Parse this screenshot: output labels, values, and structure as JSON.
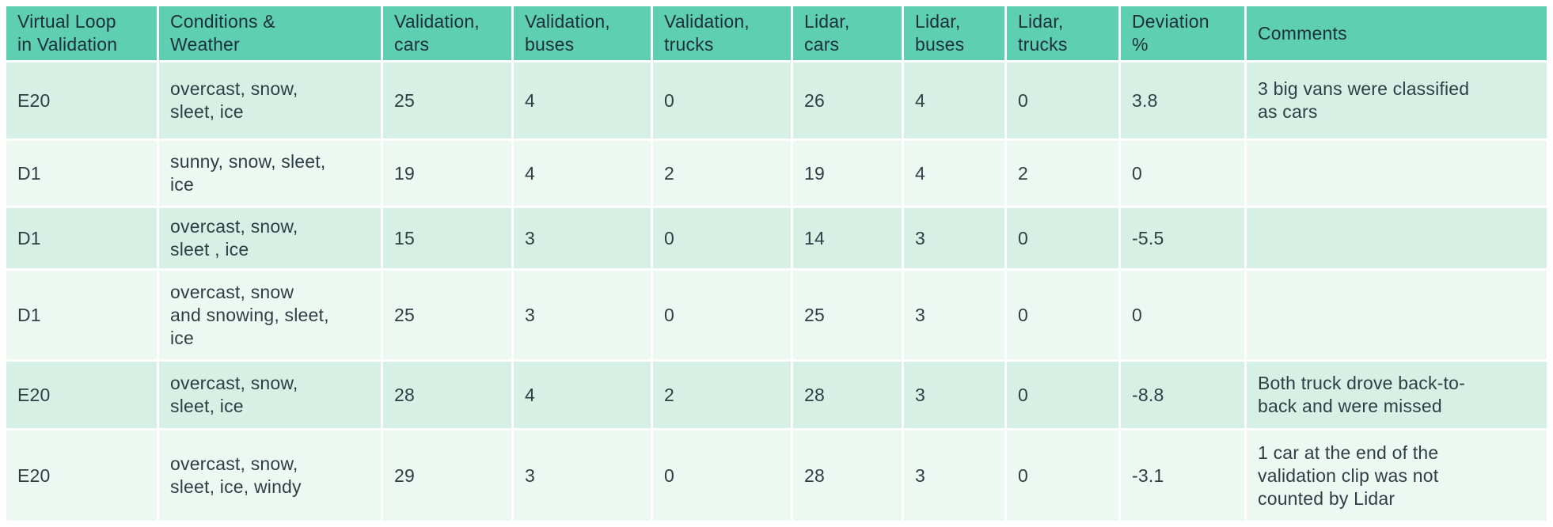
{
  "colors": {
    "header_bg": "#5fcfb2",
    "row_shaded_bg": "#d6f0e5",
    "row_light_bg": "#eef8f3",
    "gap": "#ffffff",
    "header_text": "#1e3038",
    "body_text": "#2e3e45"
  },
  "chart_data": {
    "type": "table",
    "columns": [
      "Virtual Loop\nin Validation",
      "Conditions &\nWeather",
      "Validation,\ncars",
      "Validation,\nbuses",
      "Validation,\ntrucks",
      "Lidar,\ncars",
      "Lidar,\nbuses",
      "Lidar,\ntrucks",
      "Deviation\n%",
      "Comments"
    ],
    "rows": [
      [
        "E20",
        "overcast, snow,\nsleet, ice",
        "25",
        "4",
        "0",
        "26",
        "4",
        "0",
        "3.8",
        "3 big vans were classified\nas cars"
      ],
      [
        "D1",
        "sunny, snow, sleet,\nice",
        "19",
        "4",
        "2",
        "19",
        "4",
        "2",
        "0",
        ""
      ],
      [
        "D1",
        "overcast, snow,\nsleet , ice",
        "15",
        "3",
        "0",
        "14",
        "3",
        "0",
        "-5.5",
        ""
      ],
      [
        "D1",
        "overcast, snow\nand snowing, sleet,\nice",
        "25",
        "3",
        "0",
        "25",
        "3",
        "0",
        "0",
        ""
      ],
      [
        "E20",
        "overcast, snow,\nsleet, ice",
        "28",
        "4",
        "2",
        "28",
        "3",
        "0",
        "-8.8",
        "Both truck drove back-to-\nback and were missed"
      ],
      [
        "E20",
        "overcast, snow,\nsleet, ice, windy",
        "29",
        "3",
        "0",
        "28",
        "3",
        "0",
        "-3.1",
        "1 car at the end of the\nvalidation clip was not\ncounted by Lidar"
      ]
    ]
  }
}
